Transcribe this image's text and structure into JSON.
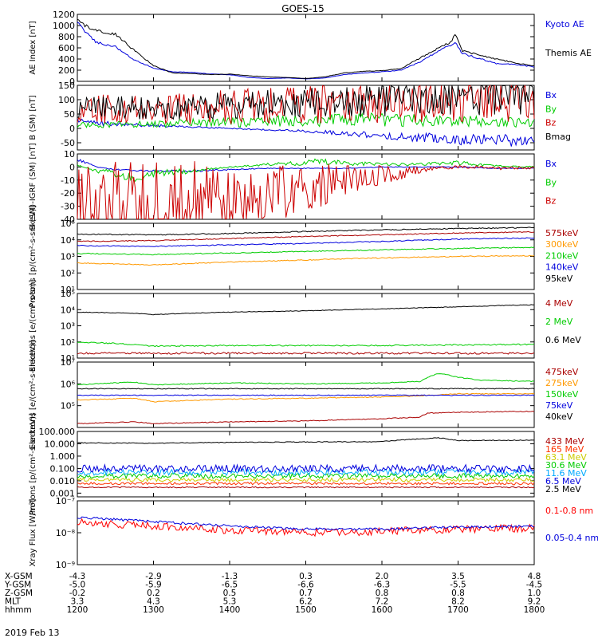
{
  "title": "GOES-15",
  "date_label": "2019 Feb 13",
  "chart_data": [
    {
      "type": "line",
      "ylabel": "AE Index [nT]",
      "yscale": "linear",
      "ylim": [
        0,
        1200
      ],
      "yticks": [
        0,
        200,
        400,
        600,
        800,
        1000,
        1200
      ],
      "ytick_labels": [
        "0",
        "200",
        "400",
        "600",
        "800",
        "1000",
        "1200"
      ],
      "series": [
        {
          "name": "Kyoto AE",
          "color": "#0000dd",
          "noise": 0.03,
          "x": [
            12.0,
            12.1,
            12.25,
            12.5,
            12.75,
            13.0,
            13.25,
            13.5,
            13.75,
            14.0,
            14.25,
            14.5,
            14.75,
            15.0,
            15.25,
            15.5,
            15.75,
            16.0,
            16.25,
            16.5,
            16.75,
            16.9,
            16.97,
            17.05,
            17.25,
            17.5,
            17.75,
            18.0
          ],
          "y": [
            1050,
            900,
            700,
            620,
            380,
            240,
            170,
            160,
            130,
            120,
            70,
            50,
            60,
            45,
            60,
            120,
            150,
            170,
            200,
            350,
            550,
            650,
            700,
            500,
            420,
            320,
            300,
            260
          ]
        },
        {
          "name": "Themis AE",
          "color": "#000000",
          "noise": 0.03,
          "x": [
            12.0,
            12.1,
            12.25,
            12.5,
            12.75,
            13.0,
            13.25,
            13.5,
            13.75,
            14.0,
            14.25,
            14.5,
            14.75,
            15.0,
            15.25,
            15.5,
            15.75,
            16.0,
            16.25,
            16.5,
            16.75,
            16.9,
            16.97,
            17.05,
            17.25,
            17.5,
            17.75,
            18.0
          ],
          "y": [
            1100,
            1000,
            900,
            850,
            550,
            280,
            150,
            140,
            120,
            130,
            100,
            80,
            70,
            50,
            80,
            150,
            180,
            190,
            230,
            420,
            600,
            700,
            850,
            550,
            480,
            400,
            330,
            280
          ]
        }
      ]
    },
    {
      "type": "line",
      "ylabel": "B (SM) [nT]",
      "yscale": "linear",
      "ylim": [
        -75,
        150
      ],
      "yticks": [
        -50,
        0,
        50,
        100,
        150
      ],
      "ytick_labels": [
        "-50",
        "0",
        "50",
        "100",
        "150"
      ],
      "series": [
        {
          "name": "Bx",
          "color": "#0000dd",
          "noise": 0.5,
          "x": [
            12.0,
            13.0,
            14.0,
            15.0,
            16.0,
            17.0,
            18.0
          ],
          "y": [
            22,
            10,
            0,
            -10,
            -25,
            -38,
            -45
          ]
        },
        {
          "name": "By",
          "color": "#00cc00",
          "noise": 0.8,
          "x": [
            12.0,
            13.0,
            14.0,
            15.0,
            16.0,
            17.0,
            18.0
          ],
          "y": [
            12,
            15,
            22,
            28,
            30,
            25,
            20
          ]
        },
        {
          "name": "Bz",
          "color": "#cc0000",
          "noise": 0.8,
          "x": [
            12.0,
            12.5,
            13.0,
            14.0,
            15.0,
            16.0,
            17.0,
            18.0
          ],
          "y": [
            60,
            68,
            65,
            75,
            85,
            95,
            100,
            102
          ]
        },
        {
          "name": "Bmag",
          "color": "#000000",
          "noise": 0.6,
          "x": [
            12.0,
            12.5,
            13.0,
            14.0,
            15.0,
            16.0,
            17.0,
            18.0
          ],
          "y": [
            66,
            72,
            70,
            80,
            90,
            102,
            110,
            112
          ]
        }
      ]
    },
    {
      "type": "line",
      "ylabel": "B (SM)-IGRF (SM) [nT]",
      "yscale": "linear",
      "ylim": [
        -40,
        10
      ],
      "yticks": [
        -40,
        -30,
        -20,
        -10,
        0,
        10
      ],
      "ytick_labels": [
        "-40",
        "-30",
        "-20",
        "-10",
        "0",
        "10"
      ],
      "series": [
        {
          "name": "Bx",
          "color": "#0000dd",
          "noise": 0.3,
          "x": [
            12.0,
            12.25,
            12.5,
            13.0,
            13.5,
            14.0,
            14.5,
            15.0,
            15.5,
            16.0,
            16.5,
            17.0,
            17.5,
            18.0
          ],
          "y": [
            6,
            0,
            -2,
            -3,
            -3,
            -2,
            -1,
            -1,
            -1,
            0,
            0,
            0,
            -1,
            -1
          ]
        },
        {
          "name": "By",
          "color": "#00cc00",
          "noise": 0.6,
          "x": [
            12.0,
            12.25,
            12.5,
            12.75,
            13.0,
            13.5,
            14.0,
            14.5,
            15.0,
            15.25,
            15.5,
            16.0,
            16.5,
            17.0,
            17.5,
            18.0
          ],
          "y": [
            2,
            -3,
            -5,
            -7,
            -5,
            -3,
            0,
            2,
            3,
            5,
            3,
            2,
            2,
            3,
            1,
            0
          ]
        },
        {
          "name": "Bz",
          "color": "#cc0000",
          "noise": 1.2,
          "x": [
            12.0,
            12.2,
            12.4,
            12.6,
            12.9,
            13.1,
            13.5,
            13.8,
            14.0,
            14.3,
            14.6,
            14.9,
            15.2,
            15.5,
            15.8,
            16.0,
            16.4,
            16.7,
            17.0,
            17.3,
            17.6,
            18.0
          ],
          "y": [
            -38,
            -40,
            -33,
            -30,
            -38,
            -38,
            -30,
            -25,
            -25,
            -23,
            -20,
            -16,
            -14,
            -10,
            -8,
            -7,
            -3,
            -1,
            0,
            0,
            -1,
            -1
          ]
        }
      ]
    },
    {
      "type": "line",
      "ylabel": "Protons [p/(cm²-s-sr-keV)]",
      "yscale": "log",
      "ylim": [
        10,
        100000
      ],
      "yticks": [
        10,
        100,
        1000,
        10000,
        100000
      ],
      "ytick_labels": [
        "10¹",
        "10²",
        "10³",
        "10⁴",
        "10⁵"
      ],
      "series": [
        {
          "name": "575keV",
          "color": "#aa0000",
          "noise": 0.03,
          "x": [
            12.0,
            13.0,
            14.0,
            15.0,
            16.0,
            17.0,
            18.0
          ],
          "y": [
            8000,
            9000,
            12000,
            16000,
            20000,
            26000,
            30000
          ]
        },
        {
          "name": "300keV",
          "color": "#ff9900",
          "noise": 0.03,
          "x": [
            12.0,
            13.0,
            14.0,
            15.0,
            16.0,
            17.0,
            18.0
          ],
          "y": [
            400,
            300,
            450,
            600,
            800,
            1000,
            1100
          ]
        },
        {
          "name": "210keV",
          "color": "#00cc00",
          "noise": 0.03,
          "x": [
            12.0,
            13.0,
            14.0,
            15.0,
            16.0,
            17.0,
            18.0
          ],
          "y": [
            1500,
            1300,
            1600,
            2000,
            2500,
            3000,
            3500
          ]
        },
        {
          "name": "140keV",
          "color": "#0000dd",
          "noise": 0.03,
          "x": [
            12.0,
            13.0,
            14.0,
            15.0,
            16.0,
            17.0,
            18.0
          ],
          "y": [
            4500,
            4000,
            5000,
            6000,
            8000,
            11000,
            13000
          ]
        },
        {
          "name": "95keV",
          "color": "#000000",
          "noise": 0.03,
          "x": [
            12.0,
            13.0,
            14.0,
            15.0,
            16.0,
            17.0,
            18.0
          ],
          "y": [
            22000,
            20000,
            24000,
            32000,
            40000,
            48000,
            55000
          ]
        }
      ]
    },
    {
      "type": "line",
      "ylabel": "Electrons [e/(cm²-s-sr)]",
      "yscale": "log",
      "ylim": [
        10,
        100000
      ],
      "yticks": [
        10,
        100,
        1000,
        10000,
        100000
      ],
      "ytick_labels": [
        "10¹",
        "10²",
        "10³",
        "10⁴",
        "10⁵"
      ],
      "series": [
        {
          "name": "4 MeV",
          "color": "#aa0000",
          "noise": 0.06,
          "x": [
            12.0,
            18.0
          ],
          "y": [
            20,
            20
          ]
        },
        {
          "name": "2 MeV",
          "color": "#00cc00",
          "noise": 0.04,
          "x": [
            12.0,
            12.75,
            13.0,
            14.0,
            15.0,
            16.0,
            17.0,
            18.0
          ],
          "y": [
            100,
            70,
            55,
            60,
            60,
            60,
            65,
            70
          ]
        },
        {
          "name": "0.6 MeV",
          "color": "#000000",
          "noise": 0.02,
          "x": [
            12.0,
            12.75,
            13.0,
            14.0,
            15.0,
            16.0,
            17.0,
            18.0
          ],
          "y": [
            7000,
            6000,
            5000,
            7000,
            8500,
            11000,
            15000,
            20000
          ]
        }
      ]
    },
    {
      "type": "line",
      "ylabel": "Electrons [e/(cm²-s-sr-keV)]",
      "yscale": "log",
      "ylim": [
        10000,
        10000000
      ],
      "yticks": [
        100000,
        1000000,
        10000000
      ],
      "ytick_labels": [
        "10⁵",
        "10⁶",
        "10⁷"
      ],
      "series": [
        {
          "name": "475keV",
          "color": "#aa0000",
          "noise": 0.02,
          "x": [
            12.0,
            12.75,
            13.0,
            14.0,
            15.0,
            16.0,
            16.5,
            16.6,
            17.0,
            18.0
          ],
          "y": [
            15000,
            18000,
            15000,
            18000,
            20000,
            25000,
            30000,
            45000,
            50000,
            55000
          ]
        },
        {
          "name": "275keV",
          "color": "#ff9900",
          "noise": 0.02,
          "x": [
            12.0,
            12.75,
            13.0,
            14.0,
            15.0,
            16.0,
            16.5,
            16.6,
            17.0,
            18.0
          ],
          "y": [
            180000,
            220000,
            150000,
            200000,
            220000,
            250000,
            280000,
            300000,
            350000,
            350000
          ]
        },
        {
          "name": "150keV",
          "color": "#00cc00",
          "noise": 0.02,
          "x": [
            12.0,
            12.75,
            13.0,
            14.0,
            15.0,
            16.0,
            16.5,
            16.75,
            17.0,
            17.25,
            18.0
          ],
          "y": [
            900000,
            1200000,
            900000,
            1100000,
            1000000,
            1100000,
            1300000,
            3000000,
            2000000,
            1500000,
            1300000
          ]
        },
        {
          "name": "75keV",
          "color": "#0000dd",
          "noise": 0.02,
          "x": [
            12.0,
            18.0
          ],
          "y": [
            300000,
            300000
          ]
        },
        {
          "name": "40keV",
          "color": "#000000",
          "noise": 0.02,
          "x": [
            12.0,
            18.0
          ],
          "y": [
            600000,
            600000
          ]
        }
      ]
    },
    {
      "type": "line",
      "ylabel": "Protons [p/(cm²-s-sr-keV)]",
      "yscale": "log",
      "ylim": [
        0.0005,
        100
      ],
      "yticks": [
        0.001,
        0.01,
        0.1,
        1,
        10,
        100
      ],
      "ytick_labels": [
        "0.001",
        "0.010",
        "0.100",
        "1.000",
        "10.000",
        "100.000"
      ],
      "series": [
        {
          "name": "433 MeV",
          "color": "#aa0000",
          "noise": 0.05,
          "x": [
            12.0,
            18.0
          ],
          "y": [
            0.003,
            0.003
          ]
        },
        {
          "name": "165 MeV",
          "color": "#ff3300",
          "noise": 0.1,
          "x": [
            12.0,
            18.0
          ],
          "y": [
            0.006,
            0.006
          ]
        },
        {
          "name": "63.1 MeV",
          "color": "#cccc00",
          "noise": 0.15,
          "x": [
            12.0,
            18.0
          ],
          "y": [
            0.012,
            0.012
          ]
        },
        {
          "name": "30.6 MeV",
          "color": "#00cc00",
          "noise": 0.2,
          "x": [
            12.0,
            18.0
          ],
          "y": [
            0.025,
            0.025
          ]
        },
        {
          "name": "11.6 MeV",
          "color": "#00aaff",
          "noise": 0.25,
          "x": [
            12.0,
            18.0
          ],
          "y": [
            0.05,
            0.05
          ]
        },
        {
          "name": "6.5 MeV",
          "color": "#0000dd",
          "noise": 0.3,
          "x": [
            12.0,
            18.0
          ],
          "y": [
            0.1,
            0.1
          ]
        },
        {
          "name": "2.5 MeV",
          "color": "#000000",
          "noise": 0.03,
          "x": [
            12.0,
            13.0,
            14.0,
            15.0,
            16.0,
            16.75,
            17.0,
            18.0
          ],
          "y": [
            12,
            11,
            13,
            14,
            15,
            30,
            18,
            20
          ]
        }
      ]
    },
    {
      "type": "line",
      "ylabel": "Xray Flux [W/m²]",
      "yscale": "log",
      "ylim": [
        1e-09,
        1e-07
      ],
      "yticks": [
        1e-09,
        1e-08,
        1e-07
      ],
      "ytick_labels": [
        "10⁻⁹",
        "10⁻⁸",
        "10⁻⁷"
      ],
      "series": [
        {
          "name": "0.1-0.8 nm",
          "color": "#ff0000",
          "noise": 0.12,
          "x": [
            12.0,
            13.0,
            14.0,
            15.0,
            16.0,
            17.0,
            18.0
          ],
          "y": [
            2.1e-08,
            1.6e-08,
            1.2e-08,
            1e-08,
            1.1e-08,
            1.3e-08,
            1.4e-08
          ]
        },
        {
          "name": "0.05-0.4 nm",
          "color": "#0000dd",
          "noise": 0.04,
          "x": [
            12.0,
            13.0,
            14.0,
            15.0,
            16.0,
            17.0,
            18.0
          ],
          "y": [
            3e-08,
            2.2e-08,
            1.6e-08,
            1.3e-08,
            1.3e-08,
            1.5e-08,
            1.6e-08
          ]
        }
      ]
    }
  ],
  "x_axis": {
    "xlim": [
      12.0,
      18.0
    ],
    "ticks": [
      12,
      13,
      14,
      15,
      16,
      17,
      18
    ],
    "rows": [
      {
        "label": "X-GSM",
        "values": [
          "-4.3",
          "-2.9",
          "-1.3",
          "0.3",
          "2.0",
          "3.5",
          "4.8"
        ]
      },
      {
        "label": "Y-GSM",
        "values": [
          "-5.0",
          "-5.9",
          "-6.5",
          "-6.6",
          "-6.3",
          "-5.5",
          "-4.5"
        ]
      },
      {
        "label": "Z-GSM",
        "values": [
          "-0.2",
          "0.2",
          "0.5",
          "0.7",
          "0.8",
          "0.8",
          "1.0"
        ]
      },
      {
        "label": "MLT",
        "values": [
          "3.3",
          "4.3",
          "5.3",
          "6.2",
          "7.2",
          "8.2",
          "9.2"
        ]
      },
      {
        "label": "hhmm",
        "values": [
          "1200",
          "1300",
          "1400",
          "1500",
          "1600",
          "1700",
          "1800"
        ]
      }
    ]
  }
}
